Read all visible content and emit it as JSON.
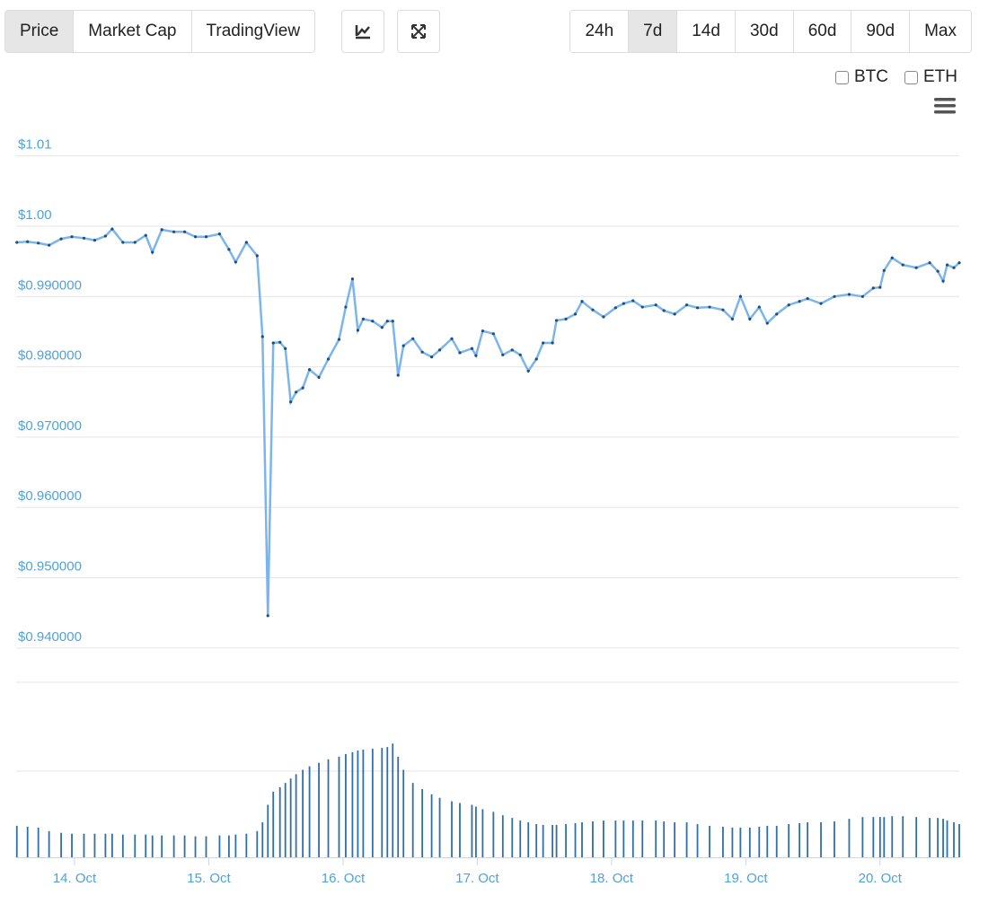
{
  "controls": {
    "tabs": [
      "Price",
      "Market Cap",
      "TradingView"
    ],
    "active_tab": "Price",
    "ranges": [
      "24h",
      "7d",
      "14d",
      "30d",
      "60d",
      "90d",
      "Max"
    ],
    "active_range": "7d",
    "toggles": [
      "BTC",
      "ETH"
    ]
  },
  "chart_data": {
    "type": "line",
    "color": "#7cb5ec",
    "marker_color": "#1f4e79",
    "grid": true,
    "xlim": [
      13.565,
      20.59
    ],
    "xticks": [
      {
        "value": 14,
        "label": "14. Oct"
      },
      {
        "value": 15,
        "label": "15. Oct"
      },
      {
        "value": 16,
        "label": "16. Oct"
      },
      {
        "value": 17,
        "label": "17. Oct"
      },
      {
        "value": 18,
        "label": "18. Oct"
      },
      {
        "value": 19,
        "label": "19. Oct"
      },
      {
        "value": 20,
        "label": "20. Oct"
      }
    ],
    "ylim": [
      0.935,
      1.016
    ],
    "yticks": [
      {
        "value": 1.01,
        "label": "$1.01"
      },
      {
        "value": 1.0,
        "label": "$1.00"
      },
      {
        "value": 0.99,
        "label": "$0.990000"
      },
      {
        "value": 0.98,
        "label": "$0.980000"
      },
      {
        "value": 0.97,
        "label": "$0.970000"
      },
      {
        "value": 0.96,
        "label": "$0.960000"
      },
      {
        "value": 0.95,
        "label": "$0.950000"
      },
      {
        "value": 0.94,
        "label": "$0.940000"
      }
    ],
    "x": [
      13.57,
      13.65,
      13.73,
      13.81,
      13.9,
      13.98,
      14.07,
      14.15,
      14.23,
      14.28,
      14.36,
      14.45,
      14.53,
      14.58,
      14.65,
      14.74,
      14.82,
      14.9,
      14.98,
      15.08,
      15.15,
      15.2,
      15.28,
      15.36,
      15.4,
      15.44,
      15.48,
      15.53,
      15.57,
      15.61,
      15.65,
      15.7,
      15.75,
      15.82,
      15.89,
      15.97,
      16.02,
      16.07,
      16.11,
      16.15,
      16.22,
      16.29,
      16.33,
      16.37,
      16.41,
      16.45,
      16.52,
      16.59,
      16.66,
      16.72,
      16.81,
      16.87,
      16.96,
      16.99,
      17.04,
      17.12,
      17.19,
      17.26,
      17.32,
      17.38,
      17.44,
      17.49,
      17.56,
      17.59,
      17.66,
      17.73,
      17.78,
      17.86,
      17.94,
      18.03,
      18.09,
      18.16,
      18.23,
      18.33,
      18.39,
      18.47,
      18.56,
      18.64,
      18.73,
      18.83,
      18.9,
      18.96,
      19.03,
      19.1,
      19.16,
      19.23,
      19.32,
      19.4,
      19.46,
      19.56,
      19.66,
      19.77,
      19.87,
      19.95,
      20.0,
      20.03,
      20.09,
      20.17,
      20.27,
      20.37,
      20.43,
      20.47,
      20.5,
      20.55,
      20.59
    ],
    "values": [
      0.9977,
      0.9978,
      0.9976,
      0.9973,
      0.9982,
      0.9985,
      0.9983,
      0.998,
      0.9986,
      0.9996,
      0.9977,
      0.9977,
      0.9987,
      0.9963,
      0.9995,
      0.9992,
      0.9992,
      0.9985,
      0.9985,
      0.9989,
      0.9967,
      0.9949,
      0.9977,
      0.9958,
      0.9843,
      0.9446,
      0.9834,
      0.9835,
      0.9826,
      0.975,
      0.9764,
      0.977,
      0.9796,
      0.9785,
      0.9811,
      0.9839,
      0.9885,
      0.9925,
      0.9852,
      0.9868,
      0.9865,
      0.9856,
      0.9865,
      0.9865,
      0.9788,
      0.983,
      0.984,
      0.9821,
      0.9814,
      0.9824,
      0.984,
      0.982,
      0.9826,
      0.9816,
      0.9851,
      0.9847,
      0.9817,
      0.9824,
      0.9817,
      0.9794,
      0.9811,
      0.9834,
      0.9834,
      0.9866,
      0.9868,
      0.9875,
      0.9893,
      0.9881,
      0.9871,
      0.9884,
      0.989,
      0.9894,
      0.9885,
      0.9888,
      0.988,
      0.9875,
      0.9888,
      0.9884,
      0.9885,
      0.9881,
      0.9868,
      0.99,
      0.9868,
      0.9885,
      0.9862,
      0.9875,
      0.9888,
      0.9893,
      0.9897,
      0.989,
      0.99,
      0.9903,
      0.99,
      0.9912,
      0.9913,
      0.9937,
      0.9955,
      0.9945,
      0.9941,
      0.9948,
      0.9936,
      0.9922,
      0.9945,
      0.9941,
      0.9948
    ],
    "volume": {
      "color": "#2f6fa8",
      "ylim": [
        0,
        200
      ],
      "values": [
        36,
        35,
        34,
        30,
        28,
        27,
        27,
        27,
        27,
        27,
        26,
        26,
        26,
        25,
        25,
        25,
        25,
        24,
        24,
        25,
        25,
        26,
        27,
        30,
        40,
        60,
        75,
        80,
        85,
        90,
        95,
        100,
        104,
        108,
        112,
        115,
        118,
        120,
        122,
        123,
        124,
        125,
        126,
        130,
        115,
        100,
        85,
        78,
        72,
        68,
        64,
        62,
        60,
        58,
        55,
        52,
        48,
        45,
        42,
        40,
        38,
        37,
        37,
        37,
        38,
        39,
        40,
        41,
        42,
        42,
        42,
        42,
        42,
        42,
        41,
        40,
        40,
        38,
        36,
        35,
        34,
        34,
        34,
        35,
        36,
        36,
        38,
        39,
        40,
        40,
        41,
        44,
        46,
        46,
        46,
        46,
        47,
        47,
        46,
        45,
        45,
        44,
        42,
        40,
        38
      ]
    }
  }
}
